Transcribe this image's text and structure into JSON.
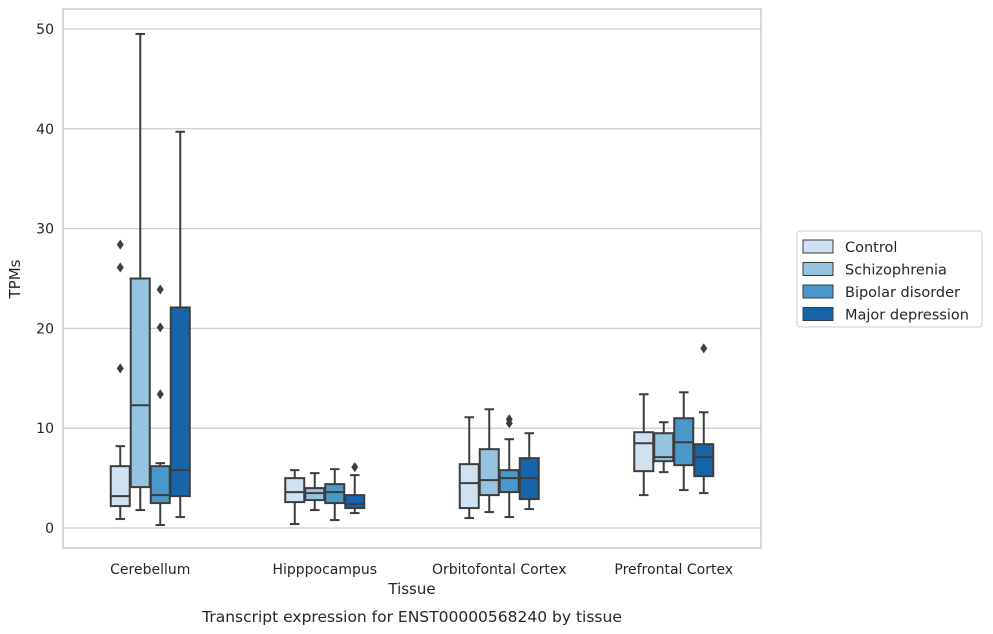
{
  "chart_data": {
    "type": "box",
    "caption": "Transcript expression for ENST00000568240 by tissue",
    "xlabel": "Tissue",
    "ylabel": "TPMs",
    "ylim": [
      -2,
      52
    ],
    "yticks": [
      0,
      10,
      20,
      30,
      40,
      50
    ],
    "grid": "horizontal",
    "legend_position": "right",
    "categories": [
      "Cerebellum",
      "Hipppocampus",
      "Orbitofontal Cortex",
      "Prefrontal Cortex"
    ],
    "series": [
      {
        "name": "Control",
        "color": "#d0e1f2",
        "boxes": [
          {
            "whisker_low": 0.9,
            "q1": 2.2,
            "median": 3.2,
            "q3": 6.2,
            "whisker_high": 8.2,
            "outliers": [
              16.0,
              26.1,
              28.4
            ]
          },
          {
            "whisker_low": 0.4,
            "q1": 2.6,
            "median": 3.6,
            "q3": 5.0,
            "whisker_high": 5.8,
            "outliers": []
          },
          {
            "whisker_low": 1.0,
            "q1": 2.0,
            "median": 4.5,
            "q3": 6.4,
            "whisker_high": 11.1,
            "outliers": []
          },
          {
            "whisker_low": 3.3,
            "q1": 5.7,
            "median": 8.5,
            "q3": 9.6,
            "whisker_high": 13.4,
            "outliers": []
          }
        ]
      },
      {
        "name": "Schizophrenia",
        "color": "#94c4df",
        "boxes": [
          {
            "whisker_low": 1.8,
            "q1": 4.1,
            "median": 12.3,
            "q3": 25.0,
            "whisker_high": 49.5,
            "outliers": []
          },
          {
            "whisker_low": 1.8,
            "q1": 2.8,
            "median": 3.5,
            "q3": 4.0,
            "whisker_high": 5.5,
            "outliers": []
          },
          {
            "whisker_low": 1.6,
            "q1": 3.3,
            "median": 4.8,
            "q3": 7.9,
            "whisker_high": 11.9,
            "outliers": []
          },
          {
            "whisker_low": 5.6,
            "q1": 6.7,
            "median": 7.1,
            "q3": 9.5,
            "whisker_high": 10.6,
            "outliers": []
          }
        ]
      },
      {
        "name": "Bipolar disorder",
        "color": "#4a98c9",
        "boxes": [
          {
            "whisker_low": 0.3,
            "q1": 2.5,
            "median": 3.3,
            "q3": 6.2,
            "whisker_high": 6.5,
            "outliers": [
              13.4,
              20.1,
              23.9
            ]
          },
          {
            "whisker_low": 0.8,
            "q1": 2.5,
            "median": 3.6,
            "q3": 4.4,
            "whisker_high": 5.9,
            "outliers": []
          },
          {
            "whisker_low": 1.1,
            "q1": 3.6,
            "median": 5.0,
            "q3": 5.8,
            "whisker_high": 8.9,
            "outliers": [
              10.5,
              10.9
            ]
          },
          {
            "whisker_low": 3.8,
            "q1": 6.3,
            "median": 8.6,
            "q3": 11.0,
            "whisker_high": 13.6,
            "outliers": []
          }
        ]
      },
      {
        "name": "Major depression",
        "color": "#1764ab",
        "boxes": [
          {
            "whisker_low": 1.1,
            "q1": 3.2,
            "median": 5.8,
            "q3": 22.1,
            "whisker_high": 39.7,
            "outliers": []
          },
          {
            "whisker_low": 1.5,
            "q1": 2.0,
            "median": 2.4,
            "q3": 3.3,
            "whisker_high": 5.3,
            "outliers": [
              6.1
            ]
          },
          {
            "whisker_low": 1.9,
            "q1": 2.9,
            "median": 5.0,
            "q3": 7.0,
            "whisker_high": 9.5,
            "outliers": []
          },
          {
            "whisker_low": 3.5,
            "q1": 5.2,
            "median": 7.1,
            "q3": 8.4,
            "whisker_high": 11.6,
            "outliers": [
              18.0
            ]
          }
        ]
      }
    ]
  }
}
